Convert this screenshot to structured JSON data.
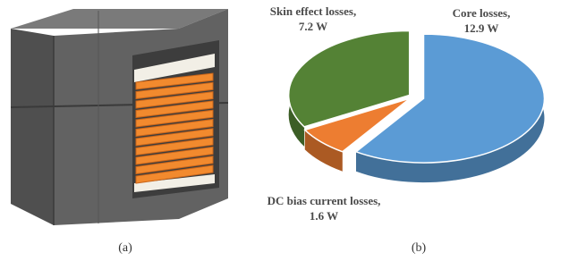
{
  "captions": [
    "(a)",
    "(b)"
  ],
  "chart_data": {
    "type": "pie",
    "categories": [
      "Core losses,",
      "DC bias current losses,",
      "Skin effect losses,"
    ],
    "values": [
      12.9,
      1.6,
      7.2
    ],
    "value_labels": [
      "12.9 W",
      "1.6 W",
      "7.2 W"
    ],
    "colors": [
      "#5b9bd5",
      "#ed7d31",
      "#548235"
    ]
  }
}
